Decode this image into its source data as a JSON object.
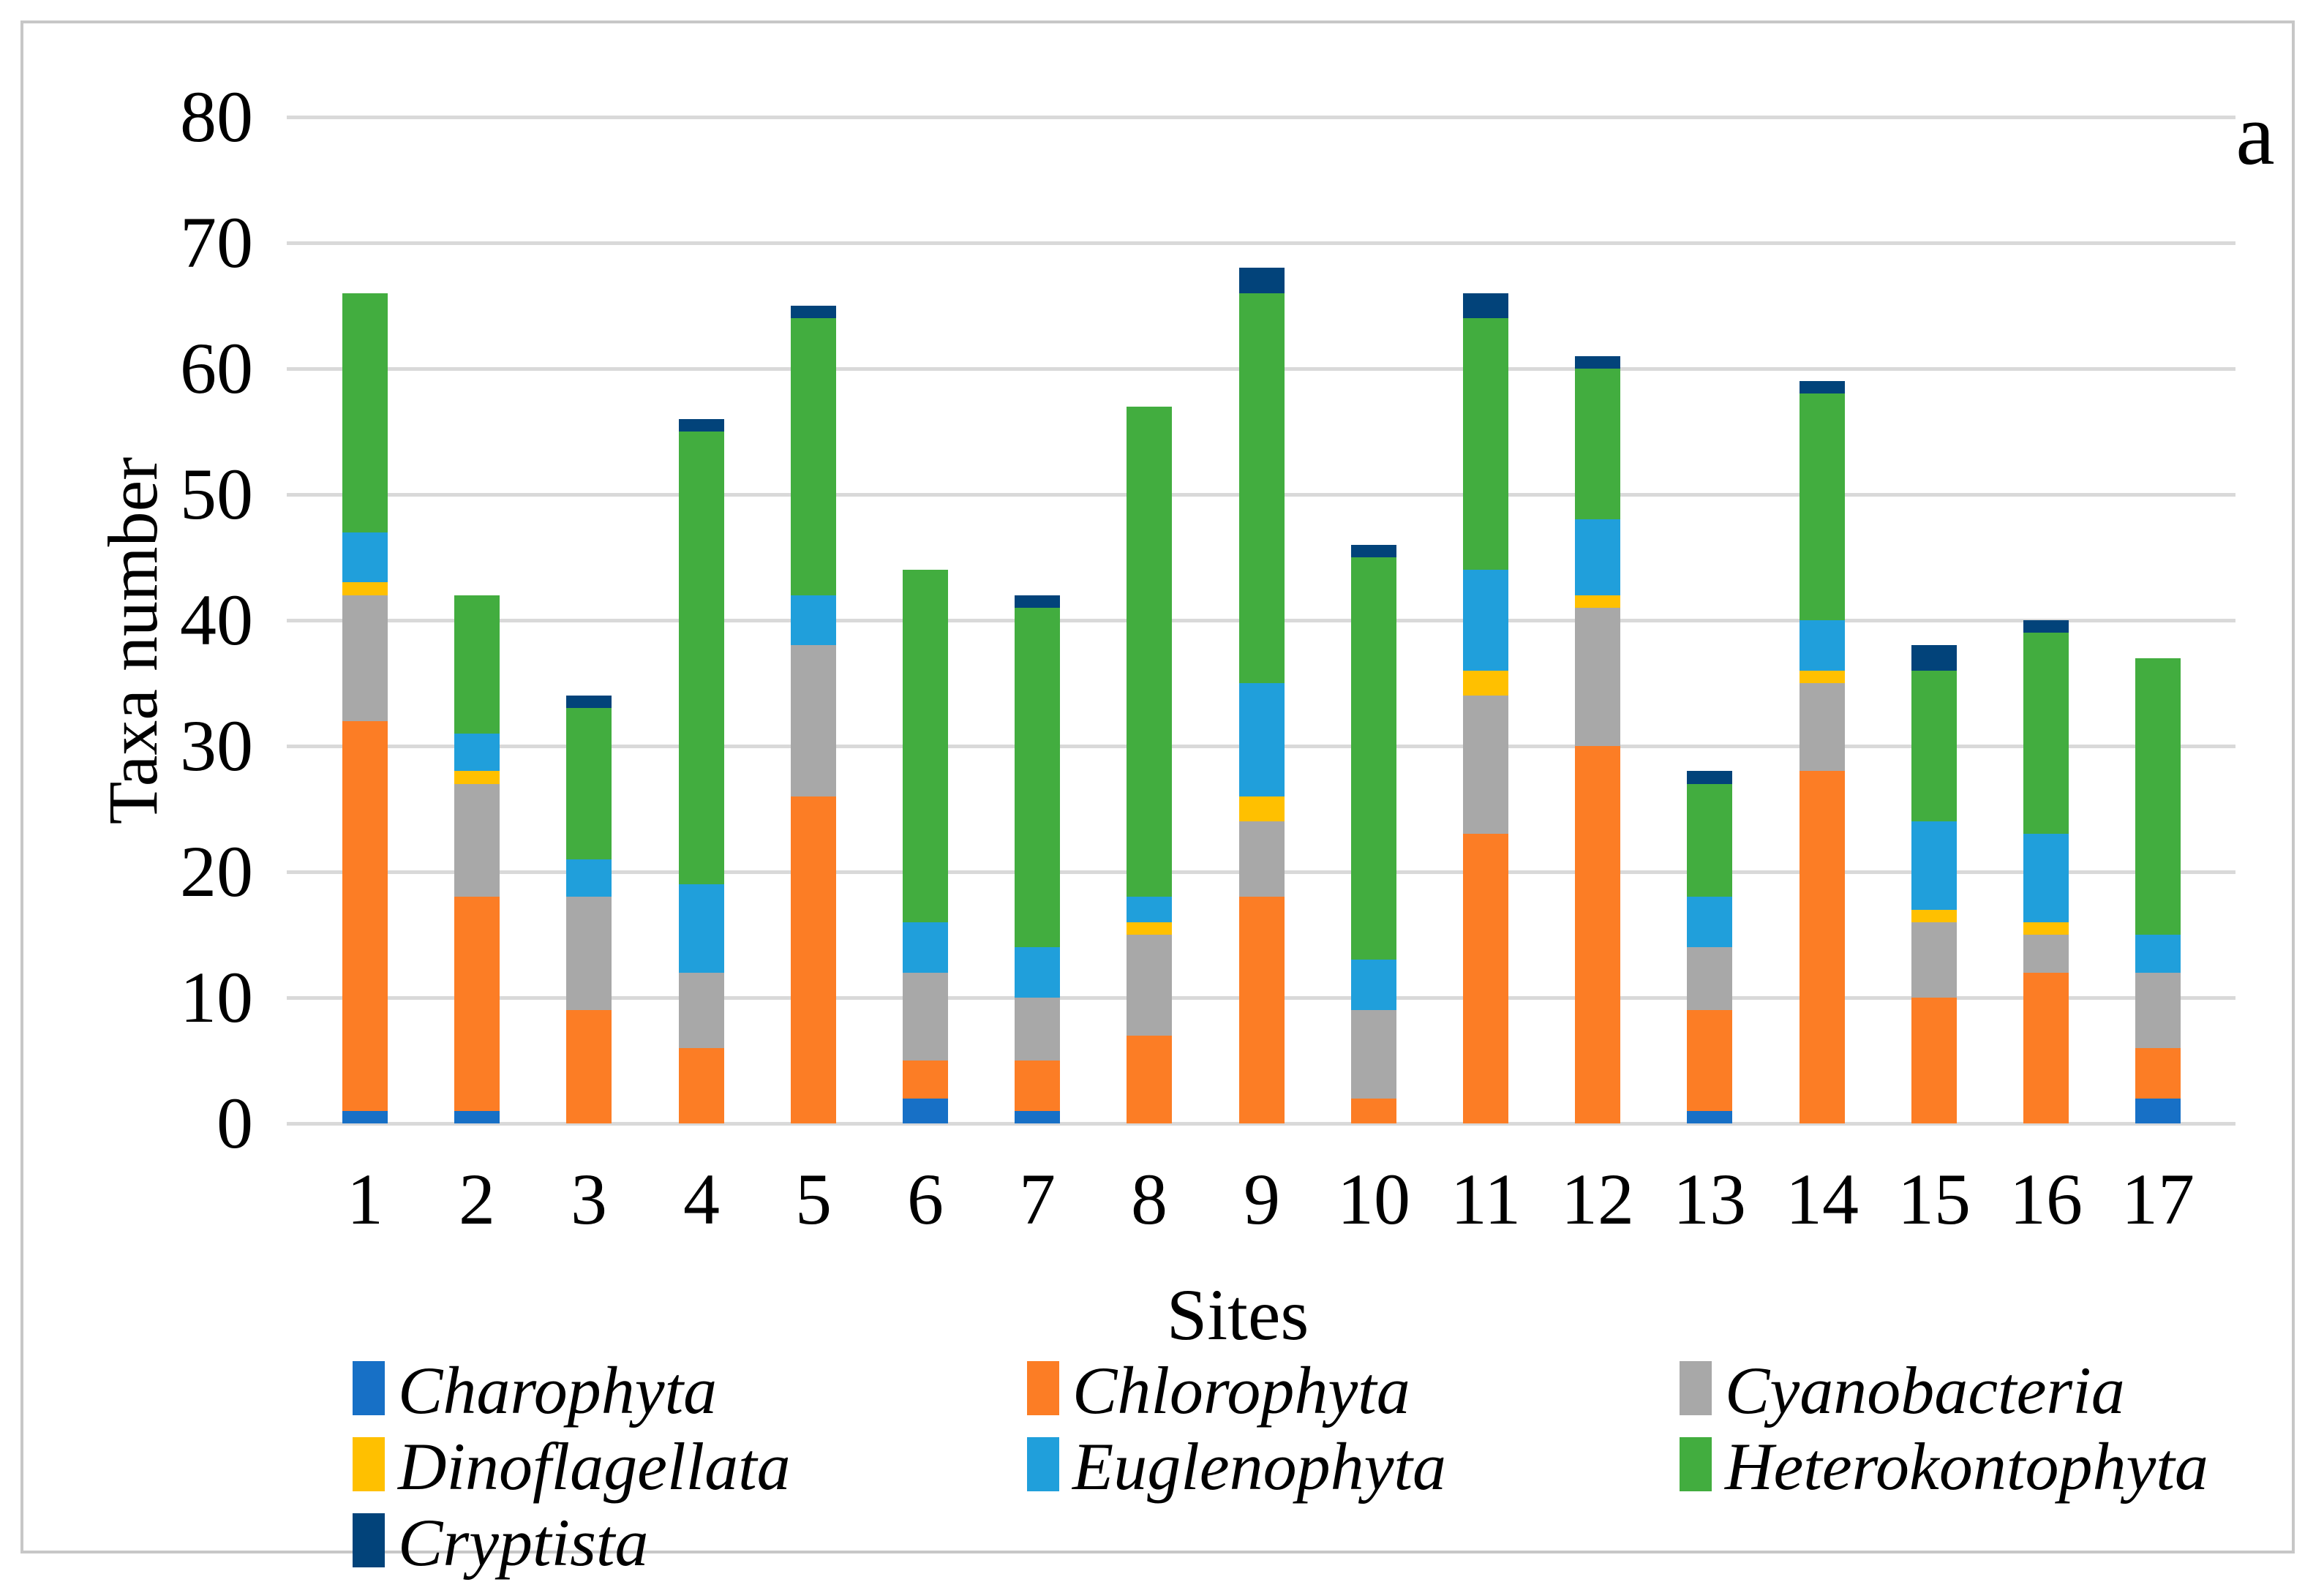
{
  "figure": {
    "annotation": "a"
  },
  "axes": {
    "ylabel": "Taxa number",
    "xlabel": "Sites"
  },
  "chart_data": {
    "type": "bar",
    "stacked": true,
    "xlabel": "Sites",
    "ylabel": "Taxa number",
    "ylim": [
      0,
      80
    ],
    "yticks": [
      0,
      10,
      20,
      30,
      40,
      50,
      60,
      70,
      80
    ],
    "grid": "horizontal",
    "gridline_color": "#d9d9d9",
    "legend_position": "bottom",
    "legend_style": "italic",
    "categories": [
      "1",
      "2",
      "3",
      "4",
      "5",
      "6",
      "7",
      "8",
      "9",
      "10",
      "11",
      "12",
      "13",
      "14",
      "15",
      "16",
      "17"
    ],
    "series": [
      {
        "name": "Charophyta",
        "color": "#1770c6",
        "values": [
          1,
          1,
          0,
          0,
          0,
          2,
          1,
          0,
          0,
          0,
          0,
          0,
          1,
          0,
          0,
          0,
          2
        ]
      },
      {
        "name": "Chlorophyta",
        "color": "#fc7d25",
        "values": [
          31,
          17,
          9,
          6,
          26,
          3,
          4,
          7,
          18,
          2,
          23,
          30,
          8,
          28,
          10,
          12,
          4
        ]
      },
      {
        "name": "Cyanobacteria",
        "color": "#a8a8a8",
        "values": [
          10,
          9,
          9,
          6,
          12,
          7,
          5,
          8,
          6,
          7,
          11,
          11,
          5,
          7,
          6,
          3,
          6
        ]
      },
      {
        "name": "Dinoflagellata",
        "color": "#ffc000",
        "values": [
          1,
          1,
          0,
          0,
          0,
          0,
          0,
          1,
          2,
          0,
          2,
          1,
          0,
          1,
          1,
          1,
          0
        ]
      },
      {
        "name": "Euglenophyta",
        "color": "#209fdb",
        "values": [
          4,
          3,
          3,
          7,
          4,
          4,
          4,
          2,
          9,
          4,
          8,
          6,
          4,
          4,
          7,
          7,
          3
        ]
      },
      {
        "name": "Heterokontophyta",
        "color": "#42ad3f",
        "values": [
          19,
          11,
          12,
          36,
          22,
          28,
          27,
          39,
          31,
          32,
          20,
          12,
          9,
          18,
          12,
          16,
          22
        ]
      },
      {
        "name": "Cryptista",
        "color": "#02437a",
        "values": [
          0,
          0,
          1,
          1,
          1,
          0,
          1,
          0,
          2,
          1,
          2,
          1,
          1,
          1,
          2,
          1,
          0
        ]
      }
    ],
    "totals": [
      66,
      42,
      34,
      56,
      65,
      44,
      42,
      57,
      68,
      46,
      66,
      61,
      28,
      59,
      38,
      40,
      37
    ]
  }
}
